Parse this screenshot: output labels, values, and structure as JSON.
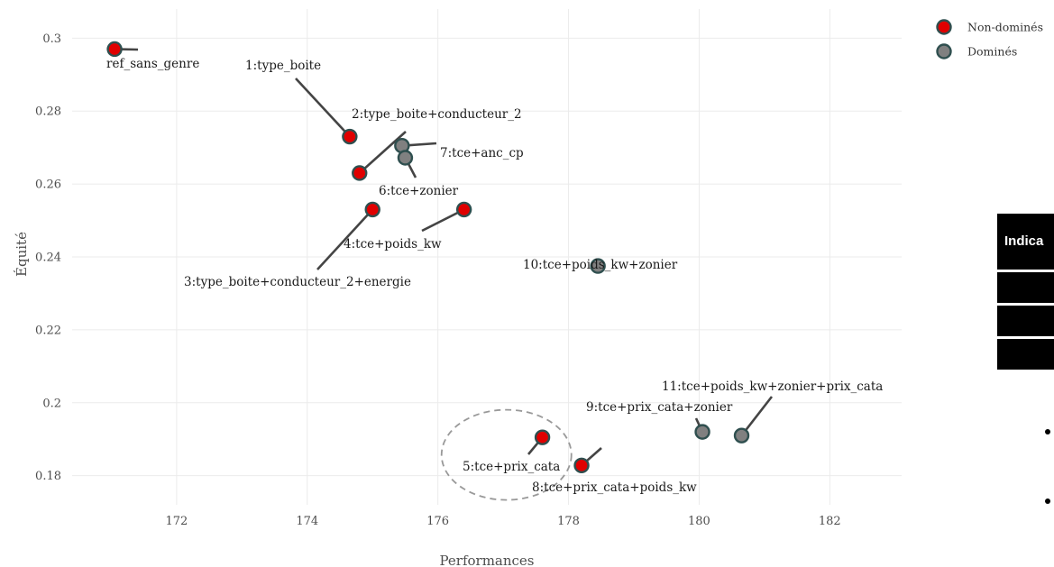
{
  "chart_data": {
    "type": "scatter",
    "title": "",
    "xlabel": "Performances",
    "ylabel": "Équité",
    "xlim": [
      170.4,
      183.1
    ],
    "ylim": [
      0.172,
      0.308
    ],
    "xticks": [
      172,
      174,
      176,
      178,
      180,
      182
    ],
    "yticks": [
      0.18,
      0.2,
      0.22,
      0.24,
      0.26,
      0.28,
      0.3
    ],
    "xtick_labels": [
      "172",
      "174",
      "176",
      "178",
      "180",
      "182"
    ],
    "ytick_labels": [
      "0.18",
      "0.2",
      "0.22",
      "0.24",
      "0.26",
      "0.28",
      "0.3"
    ],
    "grid": true,
    "legend_position": "top-right",
    "series": [
      {
        "name": "Non-dominés",
        "color": "#e00000",
        "points": [
          {
            "label": "ref_sans_genre",
            "x": 171.05,
            "y": 0.297
          },
          {
            "label": "1:type_boite",
            "x": 174.65,
            "y": 0.273
          },
          {
            "label": "2:type_boite+conducteur_2",
            "x": 174.8,
            "y": 0.263
          },
          {
            "label": "3:type_boite+conducteur_2+energie",
            "x": 175.0,
            "y": 0.253
          },
          {
            "label": "4:tce+poids_kw",
            "x": 176.4,
            "y": 0.253
          },
          {
            "label": "5:tce+prix_cata",
            "x": 177.6,
            "y": 0.1905
          },
          {
            "label": "8:tce+prix_cata+poids_kw",
            "x": 178.2,
            "y": 0.1828
          }
        ]
      },
      {
        "name": "Dominés",
        "color": "#808080",
        "points": [
          {
            "label": "7:tce+anc_cp",
            "x": 175.45,
            "y": 0.2705
          },
          {
            "label": "6:tce+zonier",
            "x": 175.5,
            "y": 0.2672
          },
          {
            "label": "10:tce+poids_kw+zonier",
            "x": 178.45,
            "y": 0.2375
          },
          {
            "label": "9:tce+prix_cata+zonier",
            "x": 180.05,
            "y": 0.192
          },
          {
            "label": "11:tce+poids_kw+zonier+prix_cata",
            "x": 180.65,
            "y": 0.191
          }
        ]
      }
    ]
  },
  "side_panel": {
    "header_text": "Indica"
  }
}
